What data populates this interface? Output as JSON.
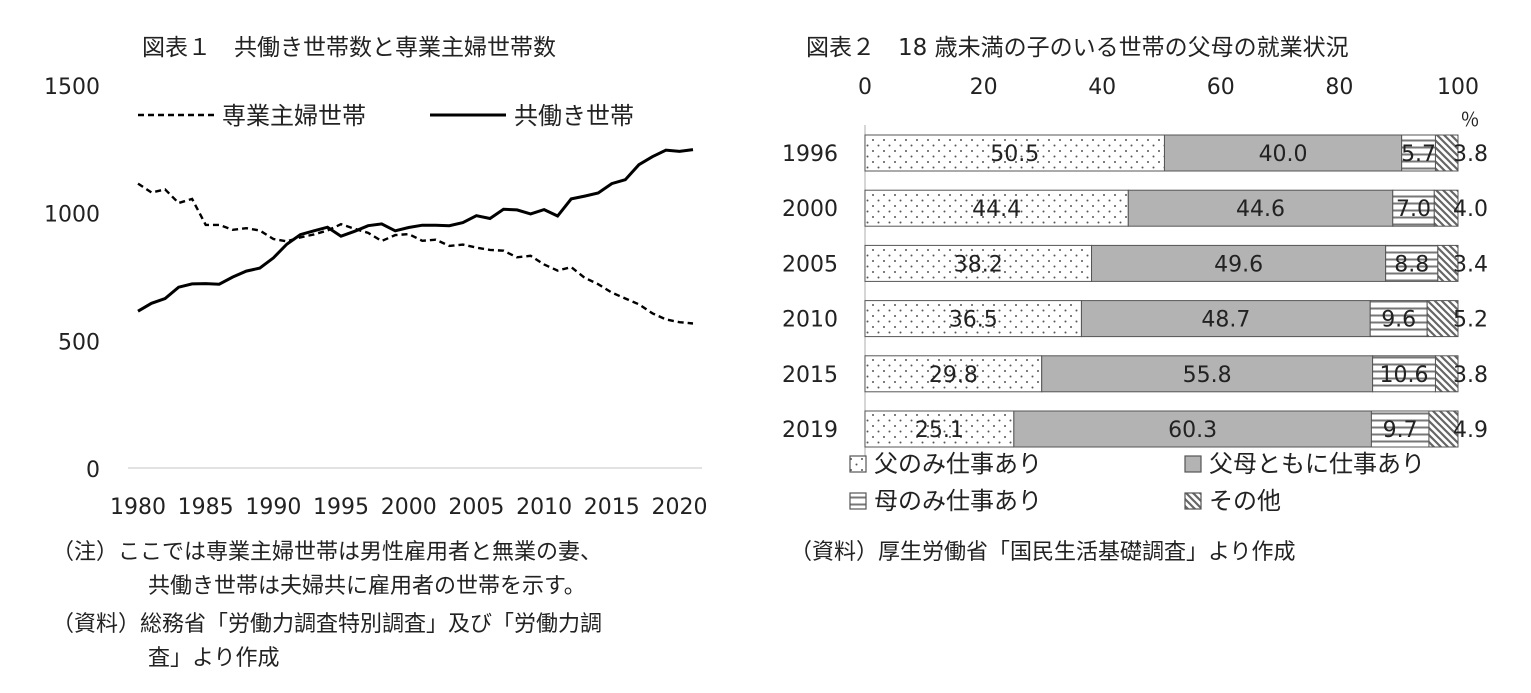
{
  "chart_data": [
    {
      "type": "line",
      "title": "図表１　共働き世帯数と専業主婦世帯数",
      "ylim": [
        0,
        1500
      ],
      "y_ticks": [
        0,
        500,
        1000,
        1500
      ],
      "x_ticks": [
        "1980",
        "1985",
        "1990",
        "1995",
        "2000",
        "2005",
        "2010",
        "2015",
        "2020"
      ],
      "grid": false,
      "legend_position": "top",
      "series": [
        {
          "name": "専業主婦世帯",
          "style": "dashed",
          "color": "#000000",
          "x": [
            1980,
            1981,
            1982,
            1983,
            1984,
            1985,
            1986,
            1987,
            1988,
            1989,
            1990,
            1991,
            1992,
            1993,
            1994,
            1995,
            1996,
            1997,
            1998,
            1999,
            2000,
            2001,
            2002,
            2003,
            2004,
            2005,
            2006,
            2007,
            2008,
            2009,
            2010,
            2011,
            2012,
            2013,
            2014,
            2015,
            2016,
            2017,
            2018,
            2019,
            2020,
            2021
          ],
          "values": [
            1114,
            1079,
            1091,
            1038,
            1054,
            952,
            952,
            933,
            939,
            930,
            897,
            888,
            903,
            915,
            930,
            955,
            937,
            921,
            889,
            912,
            916,
            890,
            894,
            870,
            875,
            863,
            854,
            851,
            825,
            831,
            797,
            773,
            787,
            745,
            720,
            687,
            664,
            641,
            606,
            582,
            571,
            566
          ]
        },
        {
          "name": "共働き世帯",
          "style": "solid",
          "color": "#000000",
          "x": [
            1980,
            1981,
            1982,
            1983,
            1984,
            1985,
            1986,
            1987,
            1988,
            1989,
            1990,
            1991,
            1992,
            1993,
            1994,
            1995,
            1996,
            1997,
            1998,
            1999,
            2000,
            2001,
            2002,
            2003,
            2004,
            2005,
            2006,
            2007,
            2008,
            2009,
            2010,
            2011,
            2012,
            2013,
            2014,
            2015,
            2016,
            2017,
            2018,
            2019,
            2020,
            2021
          ],
          "values": [
            614,
            645,
            664,
            708,
            721,
            722,
            720,
            748,
            771,
            783,
            823,
            877,
            914,
            929,
            943,
            908,
            927,
            949,
            956,
            929,
            942,
            951,
            951,
            949,
            961,
            988,
            977,
            1013,
            1011,
            995,
            1012,
            987,
            1054,
            1065,
            1077,
            1114,
            1129,
            1188,
            1219,
            1245,
            1240,
            1247
          ]
        }
      ],
      "notes": [
        "（注）ここでは専業主婦世帯は男性雇用者と無業の妻、",
        "共働き世帯は夫婦共に雇用者の世帯を示す。",
        "（資料）総務省「労働力調査特別調査」及び「労働力調",
        "査」より作成"
      ]
    },
    {
      "type": "bar",
      "stacked": true,
      "orientation": "horizontal",
      "title": "図表２　18 歳未満の子のいる世帯の父母の就業状況",
      "xlim": [
        0,
        100
      ],
      "x_ticks": [
        "0",
        "20",
        "40",
        "60",
        "80",
        "100"
      ],
      "unit": "％",
      "categories": [
        "1996",
        "2000",
        "2005",
        "2010",
        "2015",
        "2019"
      ],
      "series": [
        {
          "name": "父のみ仕事あり",
          "pattern": "dots",
          "values": [
            50.5,
            44.4,
            38.2,
            36.5,
            29.8,
            25.1
          ],
          "labels": [
            "50.5",
            "44.4",
            "38.2",
            "36.5",
            "29.8",
            "25.1"
          ]
        },
        {
          "name": "父母ともに仕事あり",
          "pattern": "solid",
          "color": "#b3b3b3",
          "values": [
            40.0,
            44.6,
            49.6,
            48.7,
            55.8,
            60.3
          ],
          "labels": [
            "40.0",
            "44.6",
            "49.6",
            "48.7",
            "55.8",
            "60.3"
          ]
        },
        {
          "name": "母のみ仕事あり",
          "pattern": "hlines",
          "values": [
            5.7,
            7.0,
            8.8,
            9.6,
            10.6,
            9.7
          ],
          "labels": [
            "5.7",
            "7.0",
            "8.8",
            "9.6",
            "10.6",
            "9.7"
          ]
        },
        {
          "name": "その他",
          "pattern": "diagonal",
          "values": [
            3.8,
            4.0,
            3.4,
            5.2,
            3.8,
            4.9
          ],
          "labels": [
            "3.8",
            "4.0",
            "3.4",
            "5.2",
            "3.8",
            "4.9"
          ]
        }
      ],
      "legend_position": "bottom",
      "notes": [
        "（資料）厚生労働省「国民生活基礎調査」より作成"
      ]
    }
  ]
}
